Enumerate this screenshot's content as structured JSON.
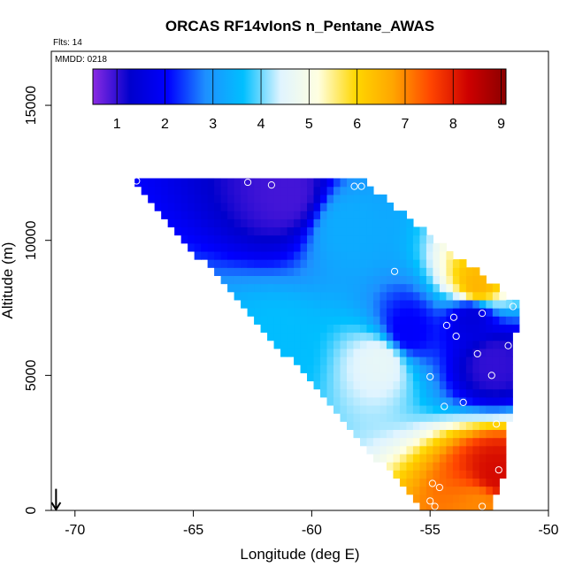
{
  "chart_data": {
    "type": "heatmap",
    "title": "ORCAS RF14vIonS n_Pentane_AWAS",
    "annotations": {
      "flights": "Flts: 14",
      "date": "MMDD: 0218"
    },
    "xlabel": "Longitude (deg E)",
    "ylabel": "Altitude (m)",
    "xlim": [
      -71,
      -50
    ],
    "ylim": [
      0,
      17000
    ],
    "xticks": [
      -70,
      -65,
      -60,
      -55,
      -50
    ],
    "yticks": [
      0,
      5000,
      10000,
      15000
    ],
    "colorbar": {
      "min": 0.5,
      "max": 9.1,
      "ticks": [
        1,
        2,
        3,
        4,
        5,
        6,
        7,
        8,
        9
      ],
      "colors": [
        "#8a2be2",
        "#0000cd",
        "#0000ff",
        "#1e90ff",
        "#00bfff",
        "#e0f4ff",
        "#ffffe0",
        "#ffd700",
        "#ffa500",
        "#ff4500",
        "#cd0000",
        "#8b0000"
      ]
    },
    "field": {
      "domain_top_altitude": 12200,
      "west_edge": [
        {
          "alt": 0,
          "lon": -55.3
        },
        {
          "alt": 12200,
          "lon": -67.6
        }
      ],
      "east_edge": [
        {
          "alt": 0,
          "lon": -52.5
        },
        {
          "alt": 1500,
          "lon": -51.8
        },
        {
          "alt": 7700,
          "lon": -51.3
        },
        {
          "alt": 9500,
          "lon": -54.0
        },
        {
          "alt": 12200,
          "lon": -57.8
        }
      ],
      "features": [
        {
          "lon": -61.0,
          "alt": 11700,
          "value": 0.9
        },
        {
          "lon": -56.0,
          "alt": 6600,
          "value": 2.0
        },
        {
          "lon": -53.2,
          "alt": 7200,
          "value": 1.5
        },
        {
          "lon": -52.3,
          "alt": 5500,
          "value": 1.0
        },
        {
          "lon": -52.2,
          "alt": 1300,
          "value": 8.2
        },
        {
          "lon": -52.8,
          "alt": 200,
          "value": 7.0
        },
        {
          "lon": -53.0,
          "alt": 8300,
          "value": 6.5
        },
        {
          "lon": -57.0,
          "alt": 5600,
          "value": 4.6
        },
        {
          "lon": -61.5,
          "alt": 6000,
          "value": 3.6
        },
        {
          "lon": -58.5,
          "alt": 10500,
          "value": 3.3
        }
      ]
    },
    "samples": [
      {
        "lon": -67.4,
        "alt": 12200
      },
      {
        "lon": -62.7,
        "alt": 12150
      },
      {
        "lon": -61.7,
        "alt": 12050
      },
      {
        "lon": -58.2,
        "alt": 12000
      },
      {
        "lon": -57.9,
        "alt": 12000
      },
      {
        "lon": -56.5,
        "alt": 8850
      },
      {
        "lon": -54.0,
        "alt": 7150
      },
      {
        "lon": -54.3,
        "alt": 6850
      },
      {
        "lon": -53.9,
        "alt": 6450
      },
      {
        "lon": -52.8,
        "alt": 7300
      },
      {
        "lon": -51.7,
        "alt": 6100
      },
      {
        "lon": -51.5,
        "alt": 7550
      },
      {
        "lon": -53.0,
        "alt": 5800
      },
      {
        "lon": -52.4,
        "alt": 5000
      },
      {
        "lon": -55.0,
        "alt": 4950
      },
      {
        "lon": -53.6,
        "alt": 4000
      },
      {
        "lon": -54.4,
        "alt": 3850
      },
      {
        "lon": -52.2,
        "alt": 3200
      },
      {
        "lon": -52.1,
        "alt": 1500
      },
      {
        "lon": -54.6,
        "alt": 850
      },
      {
        "lon": -54.9,
        "alt": 1000
      },
      {
        "lon": -55.0,
        "alt": 350
      },
      {
        "lon": -54.8,
        "alt": 150
      },
      {
        "lon": -52.8,
        "alt": 150
      }
    ],
    "arrow": {
      "lon": -70.8,
      "alt_from": 800,
      "alt_to": 0
    }
  }
}
